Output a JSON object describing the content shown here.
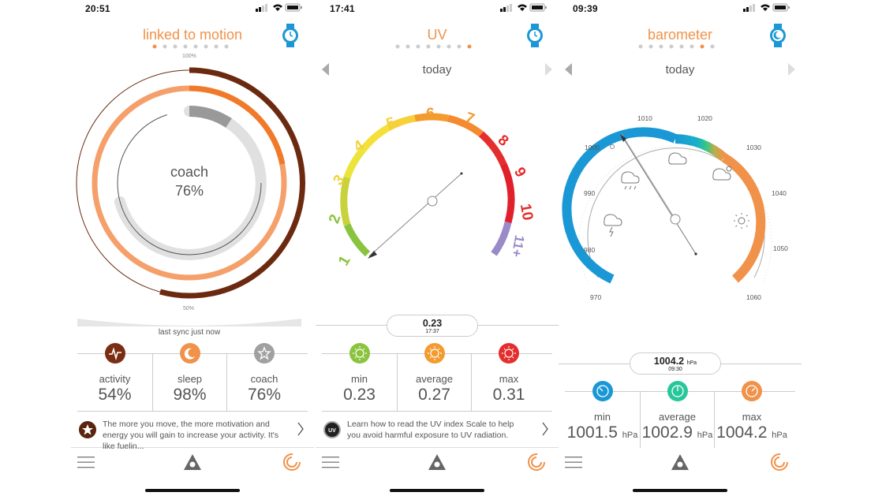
{
  "screens": [
    {
      "time": "20:51",
      "title": "linked to motion",
      "ring_top_label": "100%",
      "ring_bottom_label": "50%",
      "center_label": "coach",
      "center_value": "76%",
      "sync_text": "last sync just now",
      "stats": [
        {
          "label": "activity",
          "value": "54%",
          "icon": "activity-icon",
          "color": "#7a2d12"
        },
        {
          "label": "sleep",
          "value": "98%",
          "icon": "moon-icon",
          "color": "#f0924a"
        },
        {
          "label": "coach",
          "value": "76%",
          "icon": "star-icon",
          "color": "#a0a0a0"
        }
      ],
      "rings": {
        "activity": 0.54,
        "sleep": 0.98,
        "coach": 0.76
      },
      "tip": "The more you move, the more motivation and energy you will gain to increase your activity. It's like fuelin...",
      "tip_icon": "star-badge-icon"
    },
    {
      "time": "17:41",
      "title": "UV",
      "day": "today",
      "scale": [
        "1",
        "2",
        "3",
        "4",
        "5",
        "6",
        "7",
        "8",
        "9",
        "10",
        "11+"
      ],
      "current": {
        "value": "0.23",
        "time": "17:37"
      },
      "stats": [
        {
          "label": "min",
          "value": "0.23",
          "icon": "sun-icon",
          "color": "#8ac43f"
        },
        {
          "label": "average",
          "value": "0.27",
          "icon": "sun-icon",
          "color": "#f39b2f"
        },
        {
          "label": "max",
          "value": "0.31",
          "icon": "sun-icon",
          "color": "#e52d2d"
        }
      ],
      "tip": "Learn how to read the UV index Scale to help you avoid harmful exposure to UV radiation.",
      "tip_icon": "uv-badge-icon"
    },
    {
      "time": "09:39",
      "title": "barometer",
      "day": "today",
      "scale": [
        "970",
        "980",
        "990",
        "1000",
        "1010",
        "1020",
        "1030",
        "1040",
        "1050",
        "1060"
      ],
      "current": {
        "value": "1004.2",
        "unit": "hPa",
        "time": "09:30"
      },
      "stats": [
        {
          "label": "min",
          "value": "1001.5",
          "unit": "hPa",
          "icon": "gauge-icon",
          "color": "#1a98d5"
        },
        {
          "label": "average",
          "value": "1002.9",
          "unit": "hPa",
          "icon": "gauge-icon",
          "color": "#28c79b"
        },
        {
          "label": "max",
          "value": "1004.2",
          "unit": "hPa",
          "icon": "gauge-icon",
          "color": "#f0924a"
        }
      ]
    }
  ],
  "colors": {
    "accent": "#f0924a",
    "watch": "#1a98d5",
    "dark_brown": "#6b2a10"
  }
}
